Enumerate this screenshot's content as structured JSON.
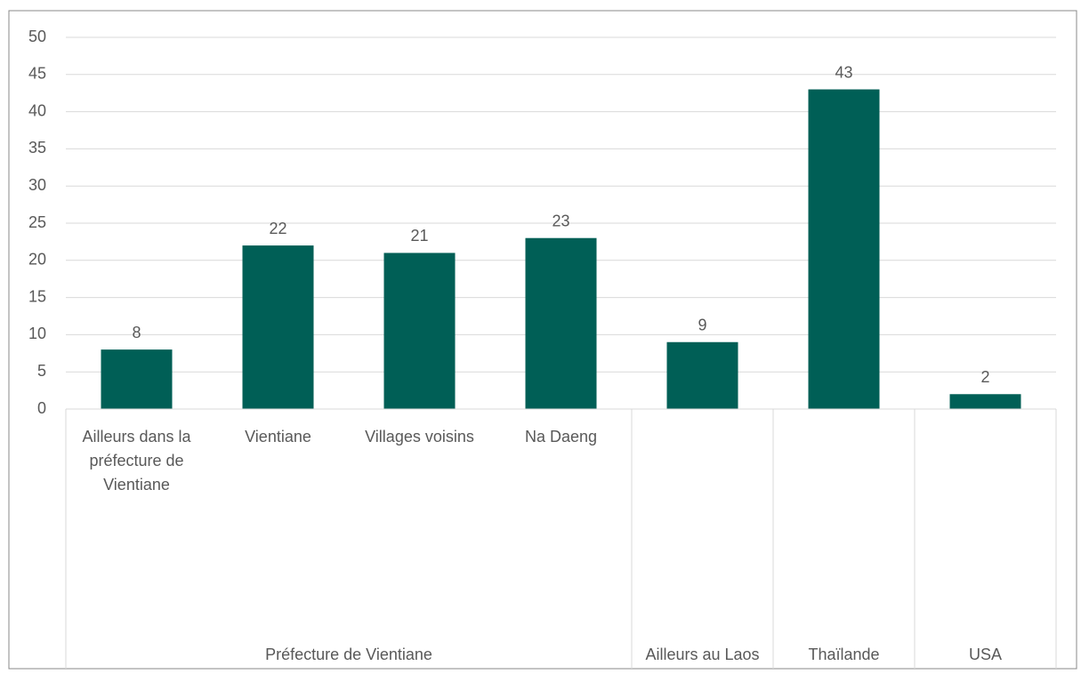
{
  "chart_data": {
    "type": "bar",
    "color": "#005f56",
    "ylim": [
      0,
      50
    ],
    "yticks": [
      0,
      5,
      10,
      15,
      20,
      25,
      30,
      35,
      40,
      45,
      50
    ],
    "grid": true,
    "groups": [
      {
        "name": "Préfecture de Vientiane",
        "categories": [
          "Ailleurs dans la préfecture de Vientiane",
          "Vientiane",
          "Villages voisins",
          "Na Daeng"
        ],
        "values": [
          8,
          22,
          21,
          23
        ]
      },
      {
        "name": "Ailleurs au Laos",
        "categories": [
          null
        ],
        "values": [
          9
        ]
      },
      {
        "name": "Thaïlande",
        "categories": [
          null
        ],
        "values": [
          43
        ]
      },
      {
        "name": "USA",
        "categories": [
          null
        ],
        "values": [
          2
        ]
      }
    ]
  }
}
